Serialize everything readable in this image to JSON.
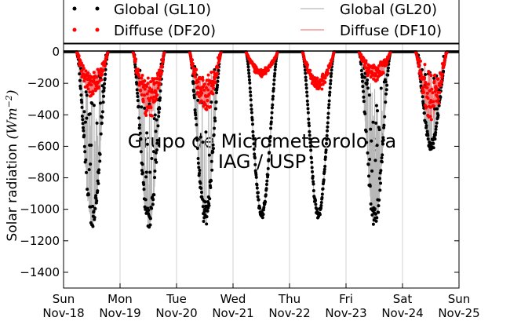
{
  "chart_data": {
    "type": "scatter",
    "title": "",
    "ylabel": "Solar radiation",
    "ylabel_unit": "(Wm^-2)",
    "ylim": [
      -1500,
      50
    ],
    "yticks": [
      0,
      -200,
      -400,
      -600,
      -800,
      -1000,
      -1200,
      -1400
    ],
    "xlim": [
      0,
      7
    ],
    "grid": "vertical at day boundaries",
    "x_ticks": [
      {
        "day": "Sun",
        "date": "Nov-18"
      },
      {
        "day": "Mon",
        "date": "Nov-19"
      },
      {
        "day": "Tue",
        "date": "Nov-20"
      },
      {
        "day": "Wed",
        "date": "Nov-21"
      },
      {
        "day": "Thu",
        "date": "Nov-22"
      },
      {
        "day": "Fri",
        "date": "Nov-23"
      },
      {
        "day": "Sat",
        "date": "Nov-24"
      },
      {
        "day": "Sun",
        "date": "Nov-25"
      }
    ],
    "legend": {
      "placement": "top",
      "entries": [
        {
          "label": "Global (GL10)",
          "style": "dots",
          "color": "#000000"
        },
        {
          "label": "Global (GL20)",
          "style": "line",
          "color": "#b8b8b8"
        },
        {
          "label": "Diffuse (DF20)",
          "style": "dots",
          "color": "#ff0000"
        },
        {
          "label": "Diffuse (DF10)",
          "style": "line",
          "color": "#f08080"
        }
      ]
    },
    "watermark": [
      "Grupo de Micrometeorologia",
      "IAG / USP"
    ],
    "series": [
      {
        "name": "Global (GL10)",
        "kind": "daily-peak",
        "color": "#000000",
        "day_peaks": [
          -1070,
          -1080,
          -1040,
          -1030,
          -1040,
          -1060,
          -600
        ]
      },
      {
        "name": "Diffuse (DF20)",
        "kind": "daily-peak",
        "color": "#ff0000",
        "day_peaks": [
          -220,
          -330,
          -300,
          -130,
          -200,
          -150,
          -350
        ]
      }
    ]
  }
}
